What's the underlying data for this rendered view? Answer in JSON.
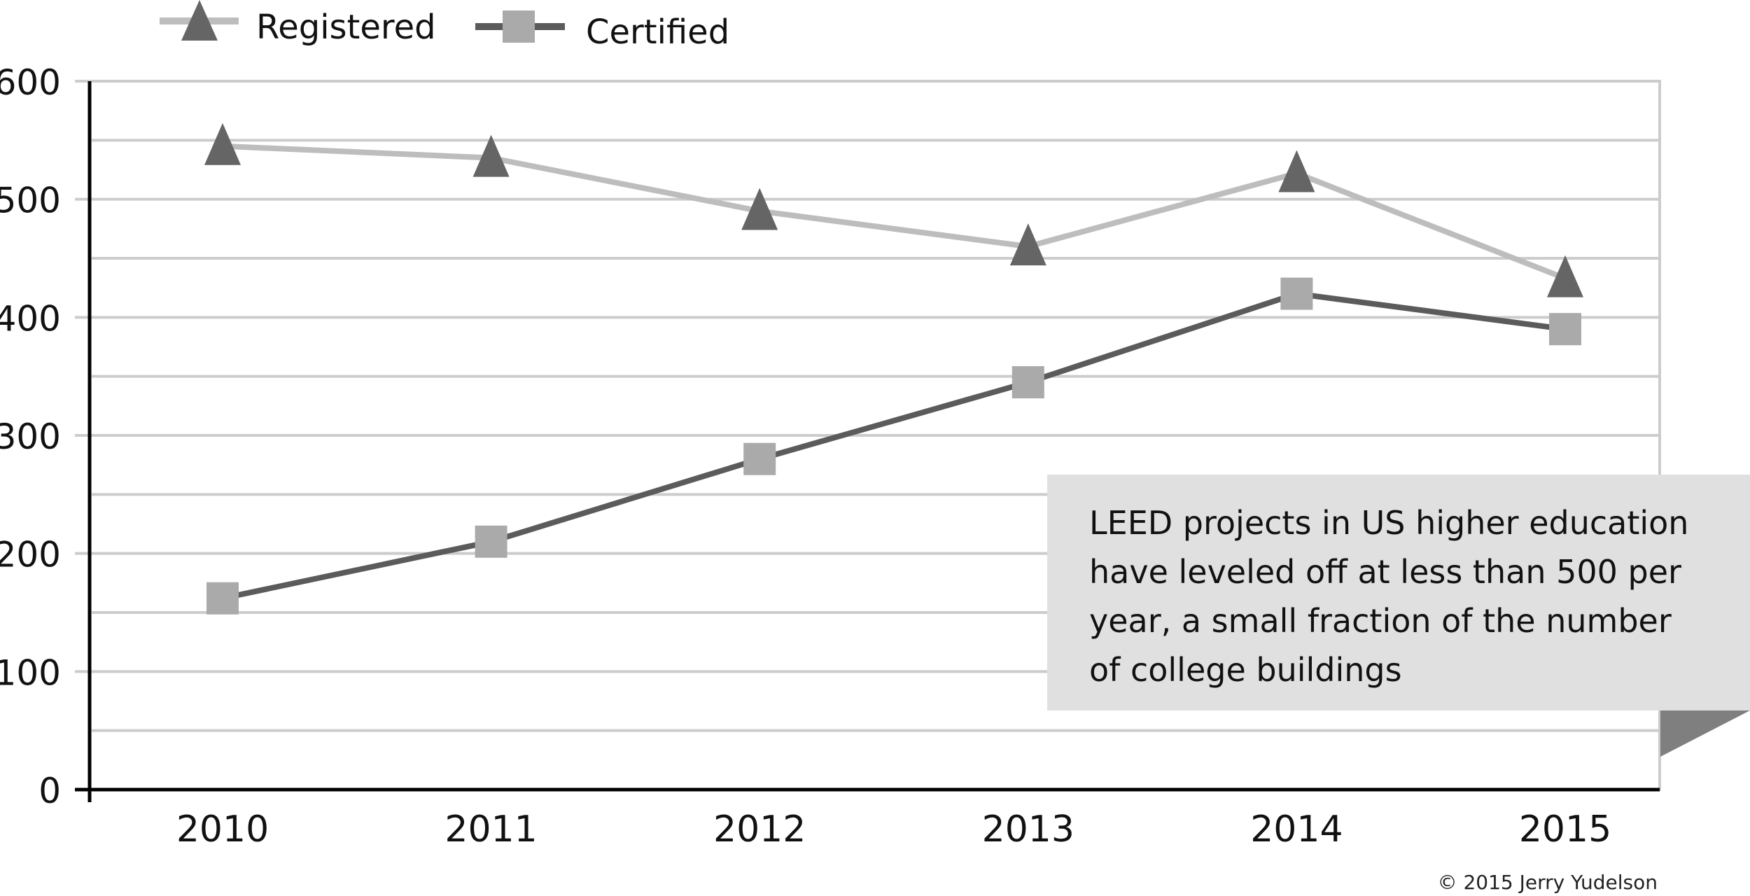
{
  "chart_data": {
    "type": "line",
    "title": "",
    "xlabel": "",
    "ylabel": "",
    "categories": [
      "2010",
      "2011",
      "2012",
      "2013",
      "2014",
      "2015"
    ],
    "ylim": [
      0,
      600
    ],
    "yticks": [
      0,
      100,
      200,
      300,
      400,
      500,
      600
    ],
    "y_minor_gridlines": [
      50,
      150,
      250,
      350,
      450,
      550
    ],
    "grid": true,
    "legend_position": "top-left",
    "series": [
      {
        "name": "Registered",
        "marker": "triangle",
        "line_color": "#bdbdbd",
        "marker_color": "#656565",
        "values": [
          545,
          535,
          490,
          460,
          522,
          433
        ]
      },
      {
        "name": "Certified",
        "marker": "square",
        "line_color": "#5b5b5b",
        "marker_color": "#aaaaaa",
        "values": [
          162,
          210,
          280,
          345,
          420,
          390
        ]
      }
    ],
    "annotation": {
      "lines": [
        "LEED projects in US higher education",
        "have leveled off at less than 500 per",
        "year, a small fraction of the number",
        "of college buildings"
      ],
      "background": "#e0e0e0",
      "fold_color": "#7f7f7f",
      "position": "right"
    },
    "credit": "© 2015 Jerry Yudelson"
  },
  "colors": {
    "gridline": "#cccccc",
    "axis": "#000000"
  }
}
